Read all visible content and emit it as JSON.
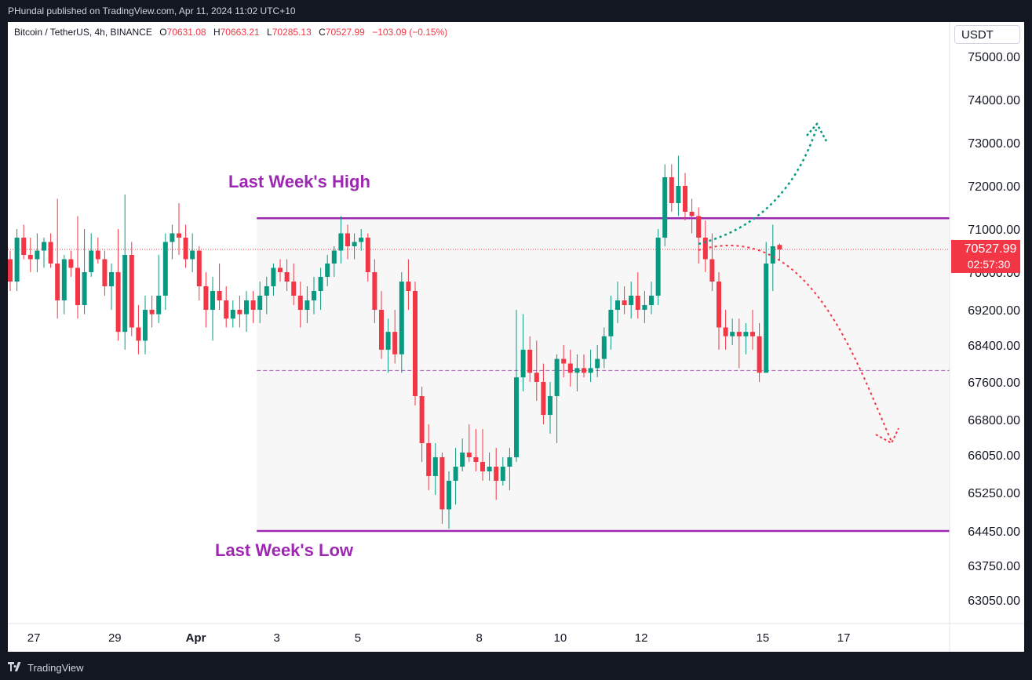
{
  "header": {
    "published_by": "PHundal published on TradingView.com, Apr 11, 2024 11:02 UTC+10"
  },
  "legend": {
    "symbol": "Bitcoin / TetherUS, 4h, BINANCE",
    "o_label": "O",
    "o_value": "70631.08",
    "h_label": "H",
    "h_value": "70663.21",
    "l_label": "L",
    "l_value": "70285.13",
    "c_label": "C",
    "c_value": "70527.99",
    "change": "−103.09 (−0.15%)"
  },
  "currency_button": "USDT",
  "price_label": {
    "price": "70527.99",
    "countdown": "02:57:30"
  },
  "annotations": {
    "high_label": "Last Week's High",
    "low_label": "Last Week's Low"
  },
  "footer": {
    "brand": "TradingView"
  },
  "colors": {
    "up": "#089981",
    "down": "#f23645",
    "range_line": "#9c27b0",
    "range_fill": "#f7f7f7",
    "midline": "#9c27b0",
    "bull_arrow": "#089981",
    "bear_arrow": "#f23645"
  },
  "chart_data": {
    "type": "candlestick",
    "symbol": "BTCUSDT",
    "timeframe": "4h",
    "y_axis": {
      "ticks": [
        "75000.00",
        "74000.00",
        "73000.00",
        "72000.00",
        "71000.00",
        "70000.00",
        "69200.00",
        "68400.00",
        "67600.00",
        "66800.00",
        "66050.00",
        "65250.00",
        "64450.00",
        "63750.00",
        "63050.00"
      ],
      "ylim": [
        62500,
        75600
      ]
    },
    "x_axis": {
      "ticks": [
        {
          "label": "27",
          "bar": 3.5,
          "bold": false
        },
        {
          "label": "29",
          "bar": 15.5,
          "bold": false
        },
        {
          "label": "Apr",
          "bar": 27.5,
          "bold": true
        },
        {
          "label": "3",
          "bar": 39.5,
          "bold": false
        },
        {
          "label": "5",
          "bar": 51.5,
          "bold": false
        },
        {
          "label": "8",
          "bar": 69.5,
          "bold": false
        },
        {
          "label": "10",
          "bar": 81.5,
          "bold": false
        },
        {
          "label": "12",
          "bar": 93.5,
          "bold": false
        },
        {
          "label": "15",
          "bar": 111.5,
          "bold": false
        },
        {
          "label": "17",
          "bar": 123.5,
          "bold": false
        }
      ]
    },
    "last_week_high": 71250,
    "last_week_low": 64450,
    "range_mid": 67850,
    "current_price": 70527.99,
    "candles": [
      [
        70300,
        70500,
        69600,
        69800
      ],
      [
        69800,
        71000,
        69600,
        70800
      ],
      [
        70800,
        71100,
        70300,
        70400
      ],
      [
        70400,
        70800,
        70000,
        70300
      ],
      [
        70300,
        70900,
        70000,
        70500
      ],
      [
        70500,
        70800,
        70100,
        70700
      ],
      [
        70700,
        70900,
        70100,
        70200
      ],
      [
        70200,
        71700,
        69000,
        69400
      ],
      [
        69400,
        70400,
        69100,
        70300
      ],
      [
        70300,
        70500,
        69900,
        70100
      ],
      [
        70100,
        71300,
        69000,
        69300
      ],
      [
        69300,
        71000,
        69100,
        70000
      ],
      [
        70000,
        70900,
        69900,
        70500
      ],
      [
        70500,
        70800,
        70200,
        70300
      ],
      [
        70300,
        70500,
        69500,
        69700
      ],
      [
        69700,
        70200,
        69200,
        70000
      ],
      [
        70000,
        71000,
        68500,
        68700
      ],
      [
        68700,
        71800,
        68300,
        70400
      ],
      [
        70400,
        70700,
        68600,
        68800
      ],
      [
        68800,
        69300,
        68200,
        68500
      ],
      [
        68500,
        69500,
        68200,
        69200
      ],
      [
        69200,
        69500,
        68800,
        69100
      ],
      [
        69100,
        70400,
        68900,
        69500
      ],
      [
        69500,
        70900,
        69200,
        70700
      ],
      [
        70700,
        71100,
        70300,
        70900
      ],
      [
        70900,
        71600,
        70400,
        70800
      ],
      [
        70800,
        71100,
        70100,
        70300
      ],
      [
        70300,
        70900,
        70000,
        70500
      ],
      [
        70500,
        70600,
        69400,
        69700
      ],
      [
        69700,
        70000,
        68800,
        69200
      ],
      [
        69200,
        69900,
        68500,
        69600
      ],
      [
        69600,
        70200,
        69200,
        69400
      ],
      [
        69400,
        69700,
        68800,
        69000
      ],
      [
        69000,
        69400,
        68800,
        69200
      ],
      [
        69200,
        69500,
        68800,
        69100
      ],
      [
        69100,
        69600,
        68700,
        69400
      ],
      [
        69400,
        69600,
        68900,
        69200
      ],
      [
        69200,
        69800,
        68900,
        69500
      ],
      [
        69500,
        69900,
        69100,
        69700
      ],
      [
        69700,
        70200,
        69500,
        70100
      ],
      [
        70100,
        70300,
        69800,
        70000
      ],
      [
        70000,
        70300,
        69600,
        69800
      ],
      [
        69800,
        70200,
        69300,
        69500
      ],
      [
        69500,
        69800,
        68800,
        69200
      ],
      [
        69200,
        69700,
        68900,
        69400
      ],
      [
        69400,
        69900,
        69100,
        69600
      ],
      [
        69600,
        70100,
        69200,
        69900
      ],
      [
        69900,
        70400,
        69700,
        70200
      ],
      [
        70200,
        70600,
        69900,
        70500
      ],
      [
        70500,
        71300,
        70200,
        70900
      ],
      [
        70900,
        71100,
        70300,
        70600
      ],
      [
        70600,
        70900,
        70300,
        70700
      ],
      [
        70700,
        71000,
        70500,
        70800
      ],
      [
        70800,
        70900,
        69800,
        70000
      ],
      [
        70000,
        70300,
        68900,
        69200
      ],
      [
        69200,
        69600,
        68100,
        68300
      ],
      [
        68300,
        69000,
        67800,
        68700
      ],
      [
        68700,
        69200,
        68000,
        68200
      ],
      [
        68200,
        70000,
        67800,
        69800
      ],
      [
        69800,
        70300,
        69200,
        69600
      ],
      [
        69600,
        69800,
        67100,
        67300
      ],
      [
        67300,
        67500,
        65900,
        66300
      ],
      [
        66300,
        66700,
        65300,
        65600
      ],
      [
        65600,
        66300,
        65200,
        66000
      ],
      [
        66000,
        66100,
        64600,
        64900
      ],
      [
        64900,
        65700,
        64500,
        65500
      ],
      [
        65500,
        66200,
        65000,
        65800
      ],
      [
        65800,
        66400,
        65700,
        66100
      ],
      [
        66100,
        66700,
        65900,
        66000
      ],
      [
        66000,
        66600,
        65700,
        65900
      ],
      [
        65900,
        66600,
        65500,
        65700
      ],
      [
        65700,
        66100,
        65500,
        65800
      ],
      [
        65800,
        66200,
        65100,
        65500
      ],
      [
        65500,
        66000,
        65400,
        65800
      ],
      [
        65800,
        66200,
        65300,
        66000
      ],
      [
        66000,
        69200,
        65900,
        67700
      ],
      [
        67700,
        69100,
        67400,
        68300
      ],
      [
        68300,
        68600,
        67600,
        67800
      ],
      [
        67800,
        68500,
        67200,
        67600
      ],
      [
        67600,
        68000,
        66700,
        66900
      ],
      [
        66900,
        67600,
        66500,
        67300
      ],
      [
        67300,
        68200,
        66300,
        68100
      ],
      [
        68100,
        68400,
        67700,
        68000
      ],
      [
        68000,
        68300,
        67500,
        67800
      ],
      [
        67800,
        68200,
        67400,
        67900
      ],
      [
        67900,
        68200,
        67700,
        67800
      ],
      [
        67800,
        68300,
        67600,
        67900
      ],
      [
        67900,
        68400,
        67700,
        68100
      ],
      [
        68100,
        68800,
        67900,
        68600
      ],
      [
        68600,
        69500,
        68300,
        69200
      ],
      [
        69200,
        69800,
        68900,
        69400
      ],
      [
        69400,
        69700,
        69100,
        69300
      ],
      [
        69300,
        69800,
        69000,
        69500
      ],
      [
        69500,
        70000,
        69000,
        69200
      ],
      [
        69200,
        69600,
        68900,
        69300
      ],
      [
        69300,
        69800,
        69100,
        69500
      ],
      [
        69500,
        71000,
        69300,
        70800
      ],
      [
        70800,
        72500,
        70600,
        72200
      ],
      [
        72200,
        72500,
        71400,
        71600
      ],
      [
        71600,
        72700,
        71300,
        72000
      ],
      [
        72000,
        72300,
        71200,
        71400
      ],
      [
        71400,
        71700,
        70900,
        71300
      ],
      [
        71300,
        71500,
        70200,
        70800
      ],
      [
        70800,
        71200,
        70000,
        70300
      ],
      [
        70300,
        70900,
        69600,
        69800
      ],
      [
        69800,
        70000,
        68300,
        68800
      ],
      [
        68800,
        69200,
        68300,
        68600
      ],
      [
        68600,
        69000,
        68400,
        68700
      ],
      [
        68700,
        69000,
        67900,
        68600
      ],
      [
        68600,
        68900,
        68200,
        68700
      ],
      [
        68700,
        69200,
        68300,
        68600
      ],
      [
        68600,
        68900,
        67600,
        67800
      ],
      [
        67800,
        70700,
        67800,
        70200
      ],
      [
        70200,
        71100,
        69600,
        70600
      ],
      [
        70631.08,
        70663.21,
        70285.13,
        70527.99
      ]
    ]
  }
}
